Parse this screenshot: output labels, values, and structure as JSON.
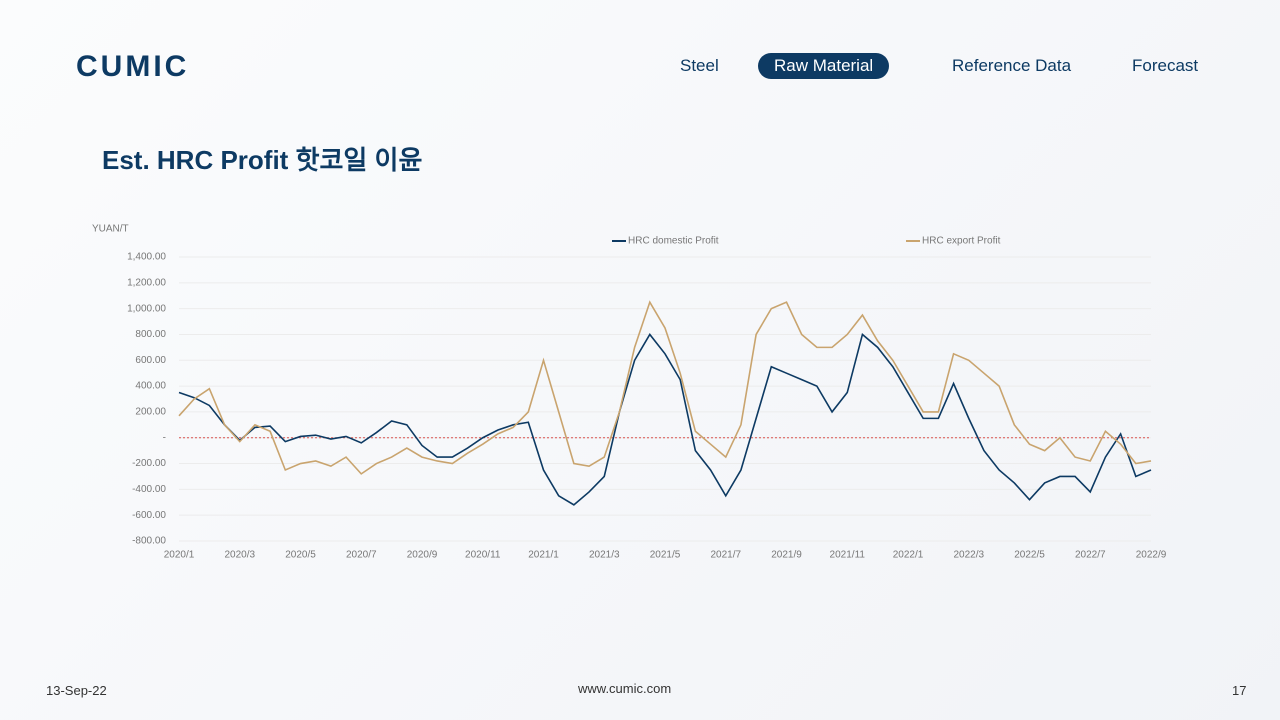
{
  "header": {
    "logo": "CUMIC",
    "nav": [
      "Steel",
      "Raw Material",
      "Reference Data",
      "Forecast"
    ],
    "active_nav": 1
  },
  "slide_title": "Est. HRC Profit 핫코일 이윤",
  "chart_data": {
    "type": "line",
    "y_axis_label": "YUAN/T",
    "categories": [
      "2020/1",
      null,
      null,
      null,
      "2020/3",
      null,
      null,
      null,
      "2020/5",
      null,
      null,
      null,
      "2020/7",
      null,
      null,
      null,
      "2020/9",
      null,
      null,
      null,
      "2020/11",
      null,
      null,
      null,
      "2021/1",
      null,
      null,
      null,
      "2021/3",
      null,
      null,
      null,
      "2021/5",
      null,
      null,
      null,
      "2021/7",
      null,
      null,
      null,
      "2021/9",
      null,
      null,
      null,
      "2021/11",
      null,
      null,
      null,
      "2022/1",
      null,
      null,
      null,
      "2022/3",
      null,
      null,
      null,
      "2022/5",
      null,
      null,
      null,
      "2022/7",
      null,
      null,
      null,
      "2022/9"
    ],
    "series": [
      {
        "name": "HRC domestic Profit",
        "color": "#0d3a63",
        "values": [
          350,
          310,
          250,
          100,
          -20,
          80,
          90,
          -30,
          10,
          20,
          -10,
          10,
          -40,
          40,
          130,
          100,
          -60,
          -150,
          -150,
          -80,
          0,
          60,
          100,
          120,
          -250,
          -450,
          -520,
          -420,
          -300,
          200,
          600,
          800,
          650,
          450,
          -100,
          -250,
          -450,
          -250,
          150,
          550,
          500,
          450,
          400,
          200,
          350,
          800,
          700,
          550,
          350,
          150,
          150,
          420,
          150,
          -100,
          -250,
          -350,
          -480,
          -350,
          -300,
          -300,
          -420,
          -150,
          30,
          -300,
          -250
        ]
      },
      {
        "name": "HRC export Profit",
        "color": "#c9a46e",
        "values": [
          170,
          300,
          380,
          100,
          -30,
          100,
          50,
          -250,
          -200,
          -180,
          -220,
          -150,
          -280,
          -200,
          -150,
          -80,
          -150,
          -180,
          -200,
          -120,
          -50,
          30,
          80,
          200,
          600,
          200,
          -200,
          -220,
          -150,
          200,
          700,
          1050,
          850,
          500,
          50,
          -50,
          -150,
          100,
          800,
          1000,
          1050,
          800,
          700,
          700,
          800,
          950,
          750,
          600,
          400,
          200,
          200,
          650,
          600,
          500,
          400,
          100,
          -50,
          -100,
          0,
          -150,
          -180,
          50,
          -50,
          -200,
          -180
        ]
      }
    ],
    "ylim": [
      -800,
      1400
    ],
    "yticks": [
      {
        "value": -800,
        "label": "-800.00"
      },
      {
        "value": -600,
        "label": "-600.00"
      },
      {
        "value": -400,
        "label": "-400.00"
      },
      {
        "value": -200,
        "label": "-200.00"
      },
      {
        "value": 0,
        "label": "-"
      },
      {
        "value": 200,
        "label": "200.00"
      },
      {
        "value": 400,
        "label": "400.00"
      },
      {
        "value": 600,
        "label": "600.00"
      },
      {
        "value": 800,
        "label": "800.00"
      },
      {
        "value": 1000,
        "label": "1,000.00"
      },
      {
        "value": 1200,
        "label": "1,200.00"
      },
      {
        "value": 1400,
        "label": "1,400.00"
      }
    ],
    "grid": true,
    "legend": "top"
  },
  "footer": {
    "date": "13-Sep-22",
    "website": "www.cumic.com",
    "page": "17"
  }
}
